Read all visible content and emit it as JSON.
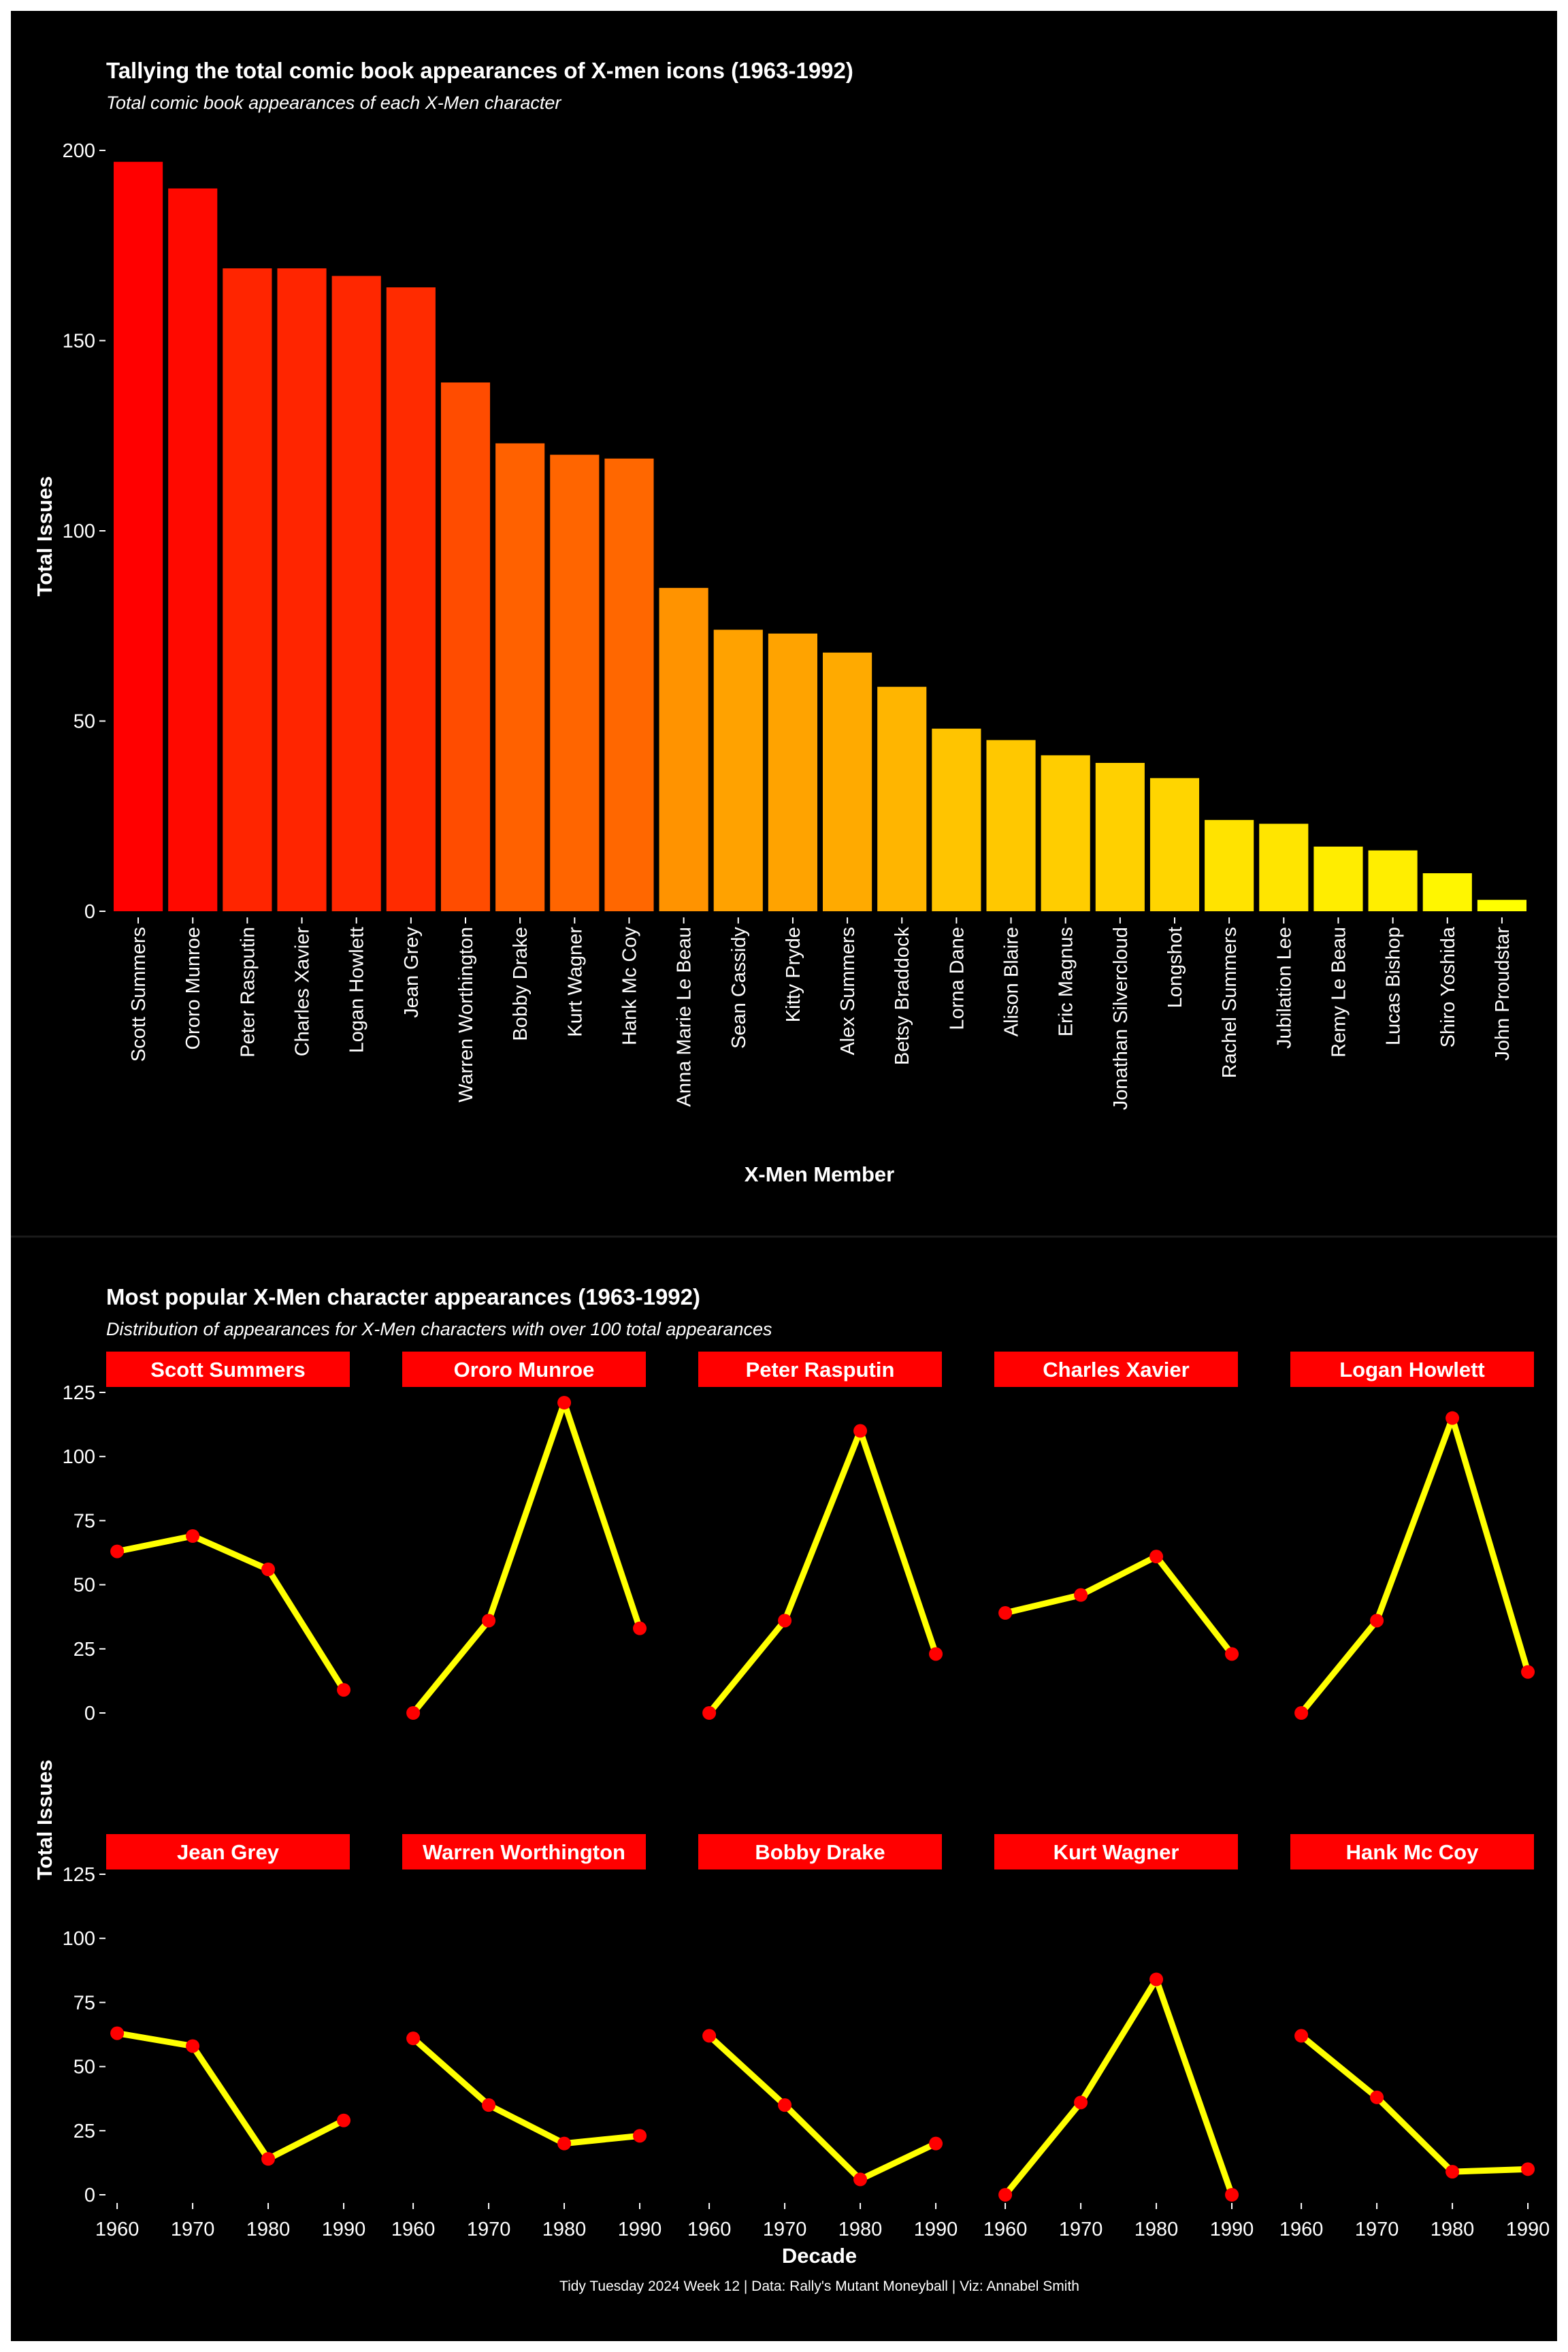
{
  "background_color": "#000000",
  "caption": "Tidy Tuesday 2024 Week 12 | Data: Rally's Mutant Moneyball | Viz: Annabel Smith",
  "chart_data": [
    {
      "type": "bar",
      "title": "Tallying the total comic book appearances of X-men icons (1963-1992)",
      "subtitle": "Total comic book appearances of each X-Men character",
      "xlabel": "X-Men Member",
      "ylabel": "Total Issues",
      "ylim": [
        0,
        205
      ],
      "yticks": [
        "0",
        "50",
        "100",
        "150",
        "200"
      ],
      "colors": {
        "low": "#ffff00",
        "high": "#ff0000"
      },
      "categories": [
        "Scott Summers",
        "Ororo Munroe",
        "Peter Rasputin",
        "Charles Xavier",
        "Logan Howlett",
        "Jean Grey",
        "Warren Worthington",
        "Bobby Drake",
        "Kurt Wagner",
        "Hank Mc Coy",
        "Anna Marie Le Beau",
        "Sean Cassidy",
        "Kitty Pryde",
        "Alex Summers",
        "Betsy Braddock",
        "Lorna Dane",
        "Alison Blaire",
        "Eric Magnus",
        "Jonathan Silvercloud",
        "Longshot",
        "Rachel Summers",
        "Jubilation Lee",
        "Remy Le Beau",
        "Lucas Bishop",
        "Shiro Yoshida",
        "John Proudstar"
      ],
      "values": [
        197,
        190,
        169,
        169,
        167,
        164,
        139,
        123,
        120,
        119,
        85,
        74,
        73,
        68,
        59,
        48,
        45,
        41,
        39,
        35,
        24,
        23,
        17,
        16,
        10,
        3
      ]
    },
    {
      "type": "line",
      "title": "Most popular X-Men character appearances (1963-1992)",
      "subtitle": "Distribution of appearances for X-Men characters with over 100 total appearances",
      "xlabel": "Decade",
      "ylabel": "Total Issues",
      "ylim": [
        -5,
        130
      ],
      "yticks": [
        "0",
        "25",
        "50",
        "75",
        "100",
        "125"
      ],
      "x": [
        "1960",
        "1970",
        "1980",
        "1990"
      ],
      "line_color": "#ffff00",
      "point_color": "#ff0000",
      "strip_color": "#ff0000",
      "series": [
        {
          "name": "Scott Summers",
          "values": [
            63,
            69,
            56,
            9
          ]
        },
        {
          "name": "Ororo Munroe",
          "values": [
            0,
            36,
            121,
            33
          ]
        },
        {
          "name": "Peter Rasputin",
          "values": [
            0,
            36,
            110,
            23
          ]
        },
        {
          "name": "Charles Xavier",
          "values": [
            39,
            46,
            61,
            23
          ]
        },
        {
          "name": "Logan Howlett",
          "values": [
            0,
            36,
            115,
            16
          ]
        },
        {
          "name": "Jean Grey",
          "values": [
            63,
            58,
            14,
            29
          ]
        },
        {
          "name": "Warren Worthington",
          "values": [
            61,
            35,
            20,
            23
          ]
        },
        {
          "name": "Bobby Drake",
          "values": [
            62,
            35,
            6,
            20
          ]
        },
        {
          "name": "Kurt Wagner",
          "values": [
            0,
            36,
            84,
            0
          ]
        },
        {
          "name": "Hank Mc Coy",
          "values": [
            62,
            38,
            9,
            10
          ]
        }
      ]
    }
  ]
}
